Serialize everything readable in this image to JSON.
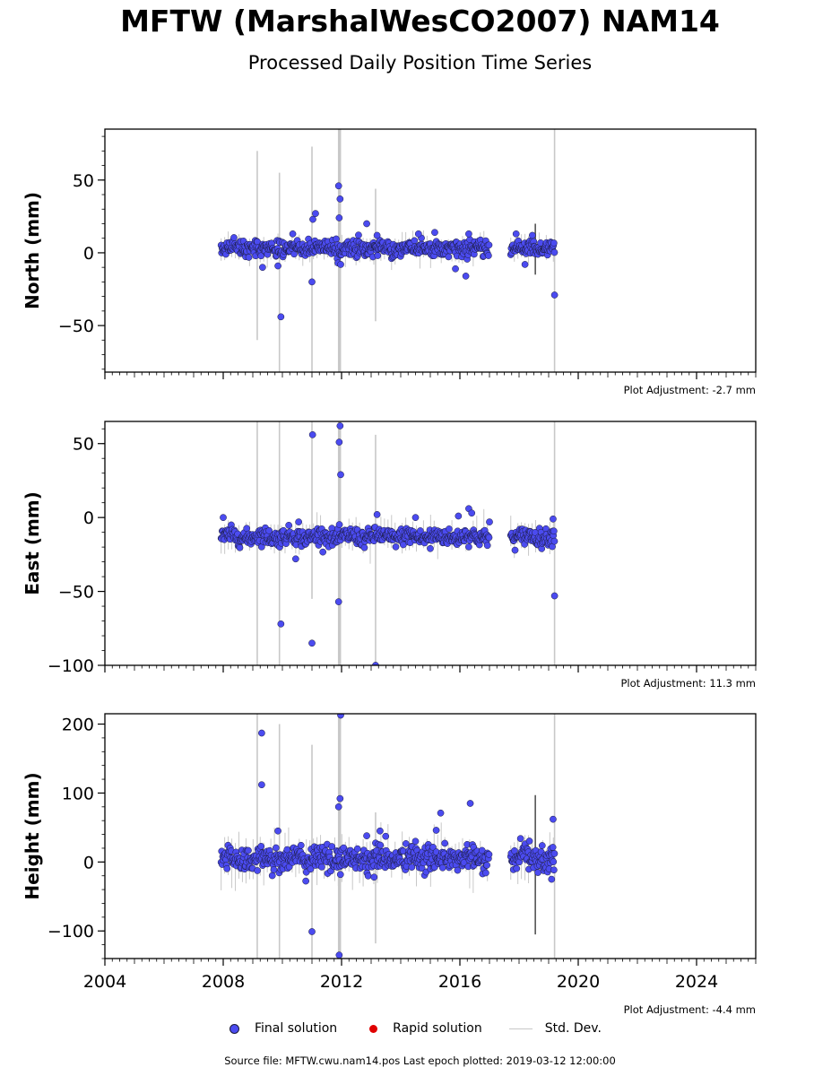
{
  "header": {
    "title": "MFTW (MarshalWesCO2007) NAM14",
    "subtitle": "Processed Daily Position Time Series"
  },
  "legend": {
    "final": "Final solution",
    "rapid": "Rapid solution",
    "std": "Std. Dev."
  },
  "footer": {
    "source": "Source file: MFTW.cwu.nam14.pos  Last epoch plotted: 2019-03-12 12:00:00"
  },
  "colors": {
    "final": "#4b4bf0",
    "rapid": "#e00000",
    "std_dev": "#c8c8c8",
    "marker_edge": "#1a1a3a"
  },
  "chart_data": [
    {
      "type": "scatter",
      "ylabel": "North (mm)",
      "xlim": [
        2004,
        2026
      ],
      "ylim": [
        -82,
        85
      ],
      "yticks": [
        -50,
        0,
        50
      ],
      "xticks": [
        2004,
        2008,
        2012,
        2016,
        2020,
        2024
      ],
      "show_x_tick_labels": false,
      "adjustment": "Plot Adjustment: -2.7 mm",
      "base": 3,
      "noise": 2.5,
      "outliers": [
        {
          "x": 2009.33,
          "y": -10
        },
        {
          "x": 2009.85,
          "y": -9
        },
        {
          "x": 2009.95,
          "y": -44
        },
        {
          "x": 2010.35,
          "y": 13
        },
        {
          "x": 2011.0,
          "y": -20
        },
        {
          "x": 2011.03,
          "y": 23
        },
        {
          "x": 2011.12,
          "y": 27
        },
        {
          "x": 2011.9,
          "y": 46
        },
        {
          "x": 2011.92,
          "y": 24
        },
        {
          "x": 2011.95,
          "y": 37
        },
        {
          "x": 2011.88,
          "y": -7
        },
        {
          "x": 2011.97,
          "y": -8
        },
        {
          "x": 2012.85,
          "y": 20
        },
        {
          "x": 2013.2,
          "y": 12
        },
        {
          "x": 2014.6,
          "y": 13
        },
        {
          "x": 2015.15,
          "y": 14
        },
        {
          "x": 2015.85,
          "y": -11
        },
        {
          "x": 2016.2,
          "y": -16
        },
        {
          "x": 2016.3,
          "y": 13
        },
        {
          "x": 2018.2,
          "y": -8
        },
        {
          "x": 2018.45,
          "y": 12
        },
        {
          "x": 2019.2,
          "y": -29
        },
        {
          "x": 2017.9,
          "y": 13
        }
      ],
      "std_lines": [
        {
          "x": 2009.15,
          "lo": -60,
          "hi": 70
        },
        {
          "x": 2009.9,
          "lo": -82,
          "hi": 55
        },
        {
          "x": 2011.0,
          "lo": -82,
          "hi": 73
        },
        {
          "x": 2011.93,
          "lo": -82,
          "hi": 85
        },
        {
          "x": 2013.15,
          "lo": -47,
          "hi": 44
        },
        {
          "x": 2019.2,
          "lo": -82,
          "hi": 85
        },
        {
          "x": 2018.55,
          "lo": -15,
          "hi": 20
        }
      ]
    },
    {
      "type": "scatter",
      "ylabel": "East (mm)",
      "xlim": [
        2004,
        2026
      ],
      "ylim": [
        -100,
        65
      ],
      "yticks": [
        -100,
        -50,
        0,
        50
      ],
      "xticks": [
        2004,
        2008,
        2012,
        2016,
        2020,
        2024
      ],
      "show_x_tick_labels": false,
      "adjustment": "Plot Adjustment: 11.3 mm",
      "base": -13,
      "noise": 2.8,
      "outliers": [
        {
          "x": 2008.0,
          "y": 0
        },
        {
          "x": 2009.95,
          "y": -72
        },
        {
          "x": 2010.45,
          "y": -28
        },
        {
          "x": 2010.55,
          "y": -3
        },
        {
          "x": 2011.0,
          "y": -85
        },
        {
          "x": 2011.02,
          "y": 56
        },
        {
          "x": 2011.9,
          "y": -57
        },
        {
          "x": 2011.92,
          "y": 51
        },
        {
          "x": 2011.95,
          "y": 62
        },
        {
          "x": 2011.97,
          "y": 29
        },
        {
          "x": 2013.2,
          "y": 2
        },
        {
          "x": 2013.15,
          "y": -100
        },
        {
          "x": 2014.5,
          "y": 0
        },
        {
          "x": 2015.95,
          "y": 1
        },
        {
          "x": 2016.3,
          "y": 6
        },
        {
          "x": 2016.4,
          "y": 3
        },
        {
          "x": 2017.0,
          "y": -3
        },
        {
          "x": 2019.15,
          "y": -1
        },
        {
          "x": 2019.2,
          "y": -53
        },
        {
          "x": 2015.0,
          "y": -21
        }
      ],
      "std_lines": [
        {
          "x": 2009.15,
          "lo": -100,
          "hi": 65
        },
        {
          "x": 2009.9,
          "lo": -100,
          "hi": 65
        },
        {
          "x": 2011.0,
          "lo": -55,
          "hi": 65
        },
        {
          "x": 2011.93,
          "lo": -100,
          "hi": 65
        },
        {
          "x": 2013.15,
          "lo": -100,
          "hi": 56
        },
        {
          "x": 2019.2,
          "lo": -100,
          "hi": 65
        }
      ]
    },
    {
      "type": "scatter",
      "ylabel": "Height (mm)",
      "xlim": [
        2004,
        2026
      ],
      "ylim": [
        -140,
        215
      ],
      "yticks": [
        -100,
        0,
        100,
        200
      ],
      "xticks": [
        2004,
        2008,
        2012,
        2016,
        2020,
        2024
      ],
      "show_x_tick_labels": true,
      "adjustment": "Plot Adjustment: -4.4 mm",
      "base": 5,
      "noise": 9,
      "outliers": [
        {
          "x": 2009.3,
          "y": 187
        },
        {
          "x": 2009.3,
          "y": 112
        },
        {
          "x": 2009.85,
          "y": 45
        },
        {
          "x": 2011.0,
          "y": -101
        },
        {
          "x": 2011.9,
          "y": 80
        },
        {
          "x": 2011.95,
          "y": 92
        },
        {
          "x": 2011.97,
          "y": 213
        },
        {
          "x": 2011.92,
          "y": -135
        },
        {
          "x": 2012.85,
          "y": 38
        },
        {
          "x": 2013.1,
          "y": -22
        },
        {
          "x": 2013.3,
          "y": 45
        },
        {
          "x": 2014.5,
          "y": 30
        },
        {
          "x": 2015.2,
          "y": 46
        },
        {
          "x": 2015.35,
          "y": 71
        },
        {
          "x": 2016.35,
          "y": 85
        },
        {
          "x": 2018.05,
          "y": 34
        },
        {
          "x": 2019.15,
          "y": 62
        },
        {
          "x": 2019.1,
          "y": -25
        }
      ],
      "std_lines": [
        {
          "x": 2009.15,
          "lo": -140,
          "hi": 215
        },
        {
          "x": 2009.9,
          "lo": -140,
          "hi": 200
        },
        {
          "x": 2011.0,
          "lo": -140,
          "hi": 170
        },
        {
          "x": 2011.93,
          "lo": -140,
          "hi": 215
        },
        {
          "x": 2013.15,
          "lo": -118,
          "hi": 72
        },
        {
          "x": 2019.2,
          "lo": -140,
          "hi": 215
        },
        {
          "x": 2018.55,
          "lo": -105,
          "hi": 97
        }
      ]
    }
  ],
  "series_spans": [
    {
      "start": 2007.93,
      "end": 2017.0
    },
    {
      "start": 2017.72,
      "end": 2019.2
    }
  ]
}
